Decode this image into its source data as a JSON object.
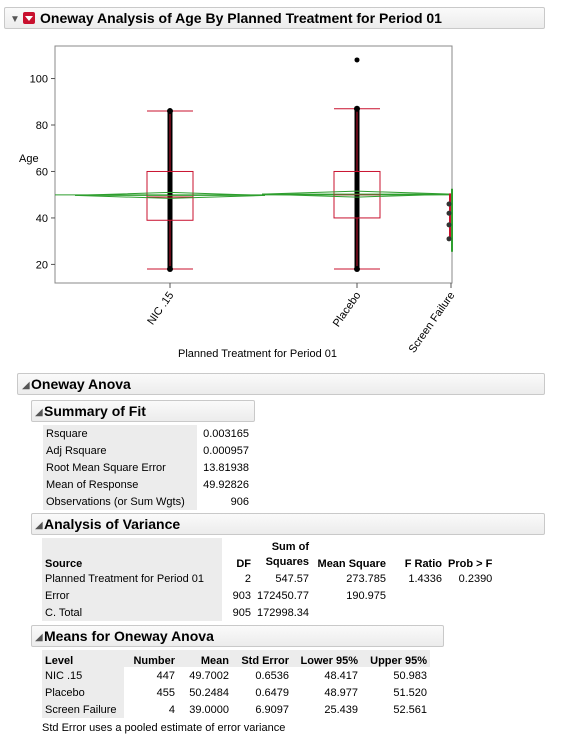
{
  "report": {
    "title": "Oneway Analysis of Age By Planned Treatment for Period 01"
  },
  "chart_data": {
    "type": "box",
    "ylabel": "Age",
    "xlabel": "Planned Treatment for Period 01",
    "y_ticks": [
      20,
      40,
      60,
      80,
      100
    ],
    "categories": [
      "NIC .15",
      "Placebo",
      "Screen Failure"
    ],
    "boxes": [
      {
        "name": "NIC .15",
        "min": 18,
        "q1": 39,
        "median": 49,
        "q3": 60,
        "max": 86,
        "mean": 49.7002,
        "ci": [
          48.417,
          50.983
        ]
      },
      {
        "name": "Placebo",
        "min": 18,
        "q1": 40,
        "median": 50,
        "q3": 60,
        "max": 87,
        "mean": 50.2484,
        "ci": [
          48.977,
          51.52
        ],
        "outliers": [
          108
        ]
      },
      {
        "name": "Screen Failure",
        "points": [
          31,
          37,
          42,
          46
        ],
        "mean": 39.0,
        "ci": [
          25.439,
          52.561
        ]
      }
    ],
    "grand_mean": 49.92826,
    "colors": {
      "box": "#c8102e",
      "means": "#2e9e2e",
      "points": "#000000"
    }
  },
  "anova": {
    "title": "Oneway Anova",
    "summary_of_fit": {
      "title": "Summary of Fit",
      "rows": [
        {
          "label": "Rsquare",
          "value": "0.003165"
        },
        {
          "label": "Adj Rsquare",
          "value": "0.000957"
        },
        {
          "label": "Root Mean Square Error",
          "value": "13.81938"
        },
        {
          "label": "Mean of Response",
          "value": "49.92826"
        },
        {
          "label": "Observations (or Sum Wgts)",
          "value": "906"
        }
      ]
    },
    "analysis_of_variance": {
      "title": "Analysis of Variance",
      "headers": {
        "source": "Source",
        "df": "DF",
        "ss_top": "Sum of",
        "ss_bottom": "Squares",
        "ms": "Mean Square",
        "f": "F Ratio",
        "p": "Prob > F"
      },
      "rows": [
        {
          "source": "Planned Treatment for Period 01",
          "df": "2",
          "ss": "547.57",
          "ms": "273.785",
          "f": "1.4336",
          "p": "0.2390"
        },
        {
          "source": "Error",
          "df": "903",
          "ss": "172450.77",
          "ms": "190.975",
          "f": "",
          "p": ""
        },
        {
          "source": "C. Total",
          "df": "905",
          "ss": "172998.34",
          "ms": "",
          "f": "",
          "p": ""
        }
      ]
    },
    "means": {
      "title": "Means for Oneway Anova",
      "headers": {
        "level": "Level",
        "number": "Number",
        "mean": "Mean",
        "se": "Std Error",
        "lower": "Lower 95%",
        "upper": "Upper 95%"
      },
      "rows": [
        {
          "level": "NIC .15",
          "number": "447",
          "mean": "49.7002",
          "se": "0.6536",
          "lower": "48.417",
          "upper": "50.983"
        },
        {
          "level": "Placebo",
          "number": "455",
          "mean": "50.2484",
          "se": "0.6479",
          "lower": "48.977",
          "upper": "51.520"
        },
        {
          "level": "Screen Failure",
          "number": "4",
          "mean": "39.0000",
          "se": "6.9097",
          "lower": "25.439",
          "upper": "52.561"
        }
      ],
      "note": "Std Error uses a pooled estimate of error variance"
    }
  }
}
